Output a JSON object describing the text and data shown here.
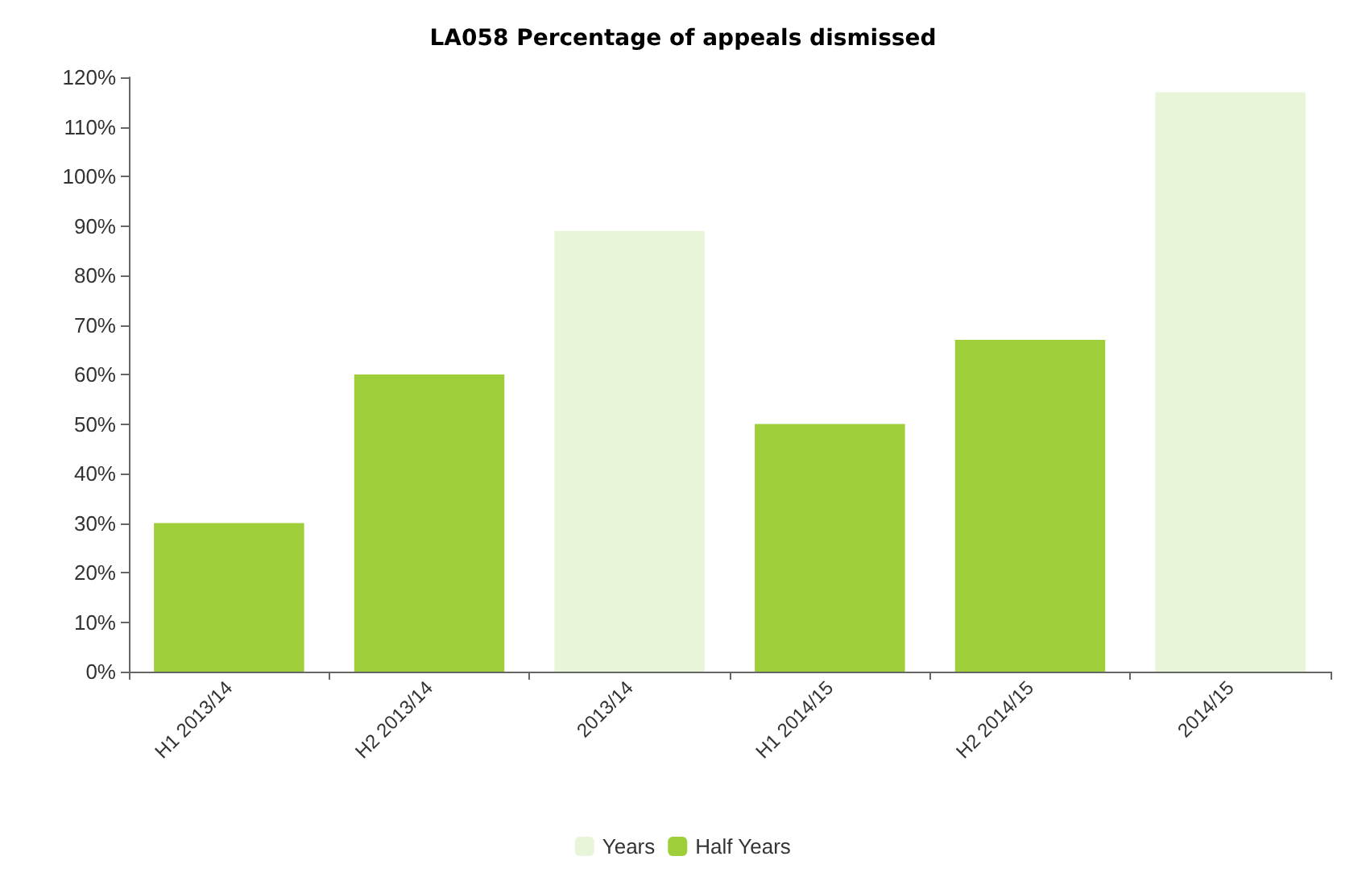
{
  "chart_data": {
    "type": "bar",
    "title": "LA058 Percentage of appeals dismissed",
    "categories": [
      "H1 2013/14",
      "H2 2013/14",
      "2013/14",
      "H1 2014/15",
      "H2 2014/15",
      "2014/15"
    ],
    "series": [
      {
        "name": "Years",
        "color": "#e8f5d8",
        "values": [
          null,
          null,
          89,
          null,
          null,
          117
        ]
      },
      {
        "name": "Half Years",
        "color": "#9ecf3a",
        "values": [
          30,
          60,
          null,
          50,
          67,
          null
        ]
      }
    ],
    "ylim": [
      0,
      120
    ],
    "yticks": [
      {
        "value": 0,
        "label": "0%"
      },
      {
        "value": 10,
        "label": "10%"
      },
      {
        "value": 20,
        "label": "20%"
      },
      {
        "value": 30,
        "label": "30%"
      },
      {
        "value": 40,
        "label": "40%"
      },
      {
        "value": 50,
        "label": "50%"
      },
      {
        "value": 60,
        "label": "60%"
      },
      {
        "value": 70,
        "label": "70%"
      },
      {
        "value": 80,
        "label": "80%"
      },
      {
        "value": 90,
        "label": "90%"
      },
      {
        "value": 100,
        "label": "100%"
      },
      {
        "value": 110,
        "label": "110%"
      },
      {
        "value": 120,
        "label": "120%"
      }
    ],
    "grid": false,
    "legend": "bottom"
  }
}
